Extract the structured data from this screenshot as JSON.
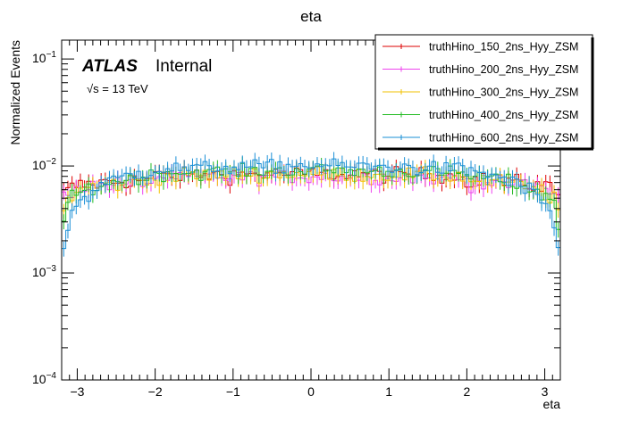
{
  "chart_data": {
    "type": "line",
    "title": "eta",
    "xlabel": "eta",
    "ylabel": "Normalized Events",
    "xlim": [
      -3.2,
      3.2
    ],
    "ylim": [
      0.0001,
      0.15
    ],
    "yscale": "log",
    "x_ticks": [
      {
        "v": -3,
        "label": "−3"
      },
      {
        "v": -2,
        "label": "−2"
      },
      {
        "v": -1,
        "label": "−1"
      },
      {
        "v": 0,
        "label": "0"
      },
      {
        "v": 1,
        "label": "1"
      },
      {
        "v": 2,
        "label": "2"
      },
      {
        "v": 3,
        "label": "3"
      }
    ],
    "y_ticks": [
      {
        "v": 0.0001,
        "base": "10",
        "exp": "−4"
      },
      {
        "v": 0.001,
        "base": "10",
        "exp": "−3"
      },
      {
        "v": 0.01,
        "base": "10",
        "exp": "−2"
      },
      {
        "v": 0.1,
        "base": "10",
        "exp": "−1"
      }
    ],
    "atlas_label": "ATLAS",
    "atlas_status": "Internal",
    "energy_label": "√s = 13 TeV",
    "legend_position": "top-right",
    "series": [
      {
        "name": "truthHino_150_2ns_Hyy_ZSM",
        "color": "#dd0000",
        "center": 0.0085,
        "edge": 0.0062,
        "edge_drop": 0.001,
        "noise": 0.0013
      },
      {
        "name": "truthHino_200_2ns_Hyy_ZSM",
        "color": "#ee44ee",
        "center": 0.008,
        "edge": 0.006,
        "edge_drop": 0.0012,
        "noise": 0.0011
      },
      {
        "name": "truthHino_300_2ns_Hyy_ZSM",
        "color": "#f2c200",
        "center": 0.0085,
        "edge": 0.0052,
        "edge_drop": 0.0016,
        "noise": 0.0013
      },
      {
        "name": "truthHino_400_2ns_Hyy_ZSM",
        "color": "#22bb22",
        "center": 0.0092,
        "edge": 0.0045,
        "edge_drop": 0.0018,
        "noise": 0.0012
      },
      {
        "name": "truthHino_600_2ns_Hyy_ZSM",
        "color": "#1a8fd6",
        "center": 0.0102,
        "edge": 0.003,
        "edge_drop": 0.002,
        "noise": 0.0014
      }
    ]
  }
}
